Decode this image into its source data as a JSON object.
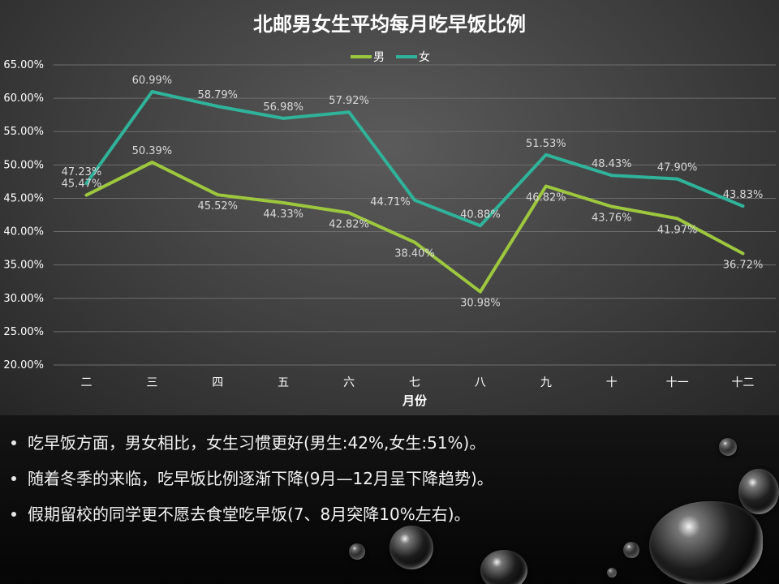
{
  "chart_data": {
    "type": "line",
    "title": "北邮男女生平均每月吃早饭比例",
    "xlabel": "月份",
    "ylabel": "",
    "categories": [
      "二",
      "三",
      "四",
      "五",
      "六",
      "七",
      "八",
      "九",
      "十",
      "十一",
      "十二"
    ],
    "ylim": [
      0.2,
      0.65
    ],
    "yticks": [
      "20.00%",
      "25.00%",
      "30.00%",
      "35.00%",
      "40.00%",
      "45.00%",
      "50.00%",
      "55.00%",
      "60.00%",
      "65.00%"
    ],
    "legend_position": "top-center",
    "grid": true,
    "series": [
      {
        "name": "男",
        "color": "#9dc83e",
        "values": [
          0.4547,
          0.5039,
          0.4552,
          0.4433,
          0.4282,
          0.384,
          0.3098,
          0.4682,
          0.4376,
          0.4197,
          0.3672
        ],
        "labels": [
          "45.47%",
          "50.39%",
          "45.52%",
          "44.33%",
          "42.82%",
          "38.40%",
          "30.98%",
          "46.82%",
          "43.76%",
          "41.97%",
          "36.72%"
        ]
      },
      {
        "name": "女",
        "color": "#2fb39a",
        "values": [
          0.4723,
          0.6099,
          0.5879,
          0.5698,
          0.5792,
          0.4471,
          0.4088,
          0.5153,
          0.4843,
          0.479,
          0.4383
        ],
        "labels": [
          "47.23%",
          "60.99%",
          "58.79%",
          "56.98%",
          "57.92%",
          "44.71%",
          "40.88%",
          "51.53%",
          "48.43%",
          "47.90%",
          "43.83%"
        ]
      }
    ]
  },
  "bullets": [
    "吃早饭方面，男女相比，女生习惯更好(男生:42%,女生:51%)。",
    "随着冬季的来临，吃早饭比例逐渐下降(9月—12月呈下降趋势)。",
    "假期留校的同学更不愿去食堂吃早饭(7、8月突降10%左右)。"
  ],
  "decorations": {
    "icon": "water-droplet-icon"
  }
}
